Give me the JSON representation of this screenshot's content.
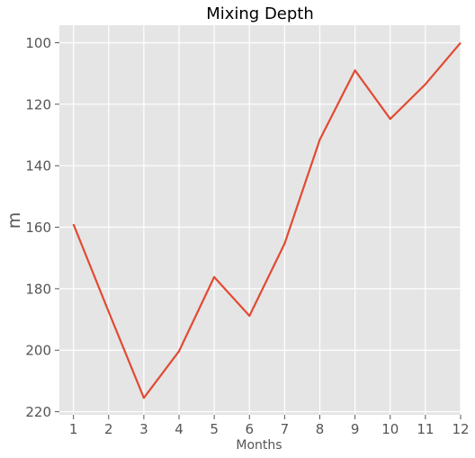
{
  "chart_data": {
    "type": "line",
    "title": "Mixing Depth",
    "xlabel": "Months",
    "ylabel": "m",
    "x": [
      1,
      2,
      3,
      4,
      5,
      6,
      7,
      8,
      9,
      10,
      11,
      12
    ],
    "series": [
      {
        "values": [
          159,
          187.5,
          215.5,
          200.3,
          176.2,
          188.8,
          165.3,
          131.5,
          109,
          124.8,
          113.5,
          100
        ],
        "color": "#e24a33"
      }
    ],
    "xlim": [
      0.6,
      12
    ],
    "ylim": [
      221,
      94.3
    ],
    "inverted_y": true,
    "x_ticks": [
      1,
      2,
      3,
      4,
      5,
      6,
      7,
      8,
      9,
      10,
      11,
      12
    ],
    "y_ticks": [
      100,
      120,
      140,
      160,
      180,
      200,
      220
    ],
    "grid": true,
    "background": "#e5e5e5",
    "grid_color": "#ffffff"
  }
}
